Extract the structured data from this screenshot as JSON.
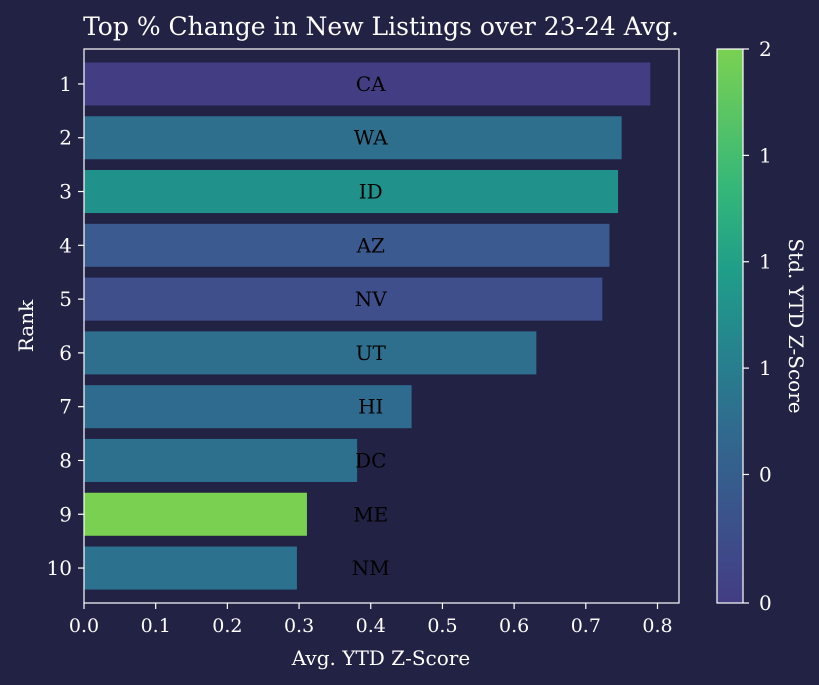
{
  "chart_data": {
    "type": "bar",
    "orientation": "horizontal",
    "title": "Top % Change in New Listings over 23-24 Avg.",
    "xlabel": "Avg. YTD Z-Score",
    "ylabel": "Rank",
    "xlim": [
      0,
      0.83
    ],
    "x_ticks": [
      "0.0",
      "0.1",
      "0.2",
      "0.3",
      "0.4",
      "0.5",
      "0.6",
      "0.7",
      "0.8"
    ],
    "categories": [
      "1",
      "2",
      "3",
      "4",
      "5",
      "6",
      "7",
      "8",
      "9",
      "10"
    ],
    "bar_labels": [
      "CA",
      "WA",
      "ID",
      "AZ",
      "NV",
      "UT",
      "HI",
      "DC",
      "ME",
      "NM"
    ],
    "values": [
      0.79,
      0.75,
      0.745,
      0.733,
      0.723,
      0.631,
      0.457,
      0.381,
      0.311,
      0.297
    ],
    "colors": [
      "#433d84",
      "#2e6f8e",
      "#21918c",
      "#3b5a8f",
      "#3f4f8b",
      "#2e6f8e",
      "#2f6b8e",
      "#2d708e",
      "#7ad151",
      "#2c728e"
    ],
    "grid": false,
    "legend": "none",
    "colorbar": {
      "label": "Std. YTD Z-Score",
      "colormap": "viridis",
      "tick_labels": [
        "2",
        "1",
        "1",
        "1",
        "0",
        "0"
      ]
    }
  }
}
